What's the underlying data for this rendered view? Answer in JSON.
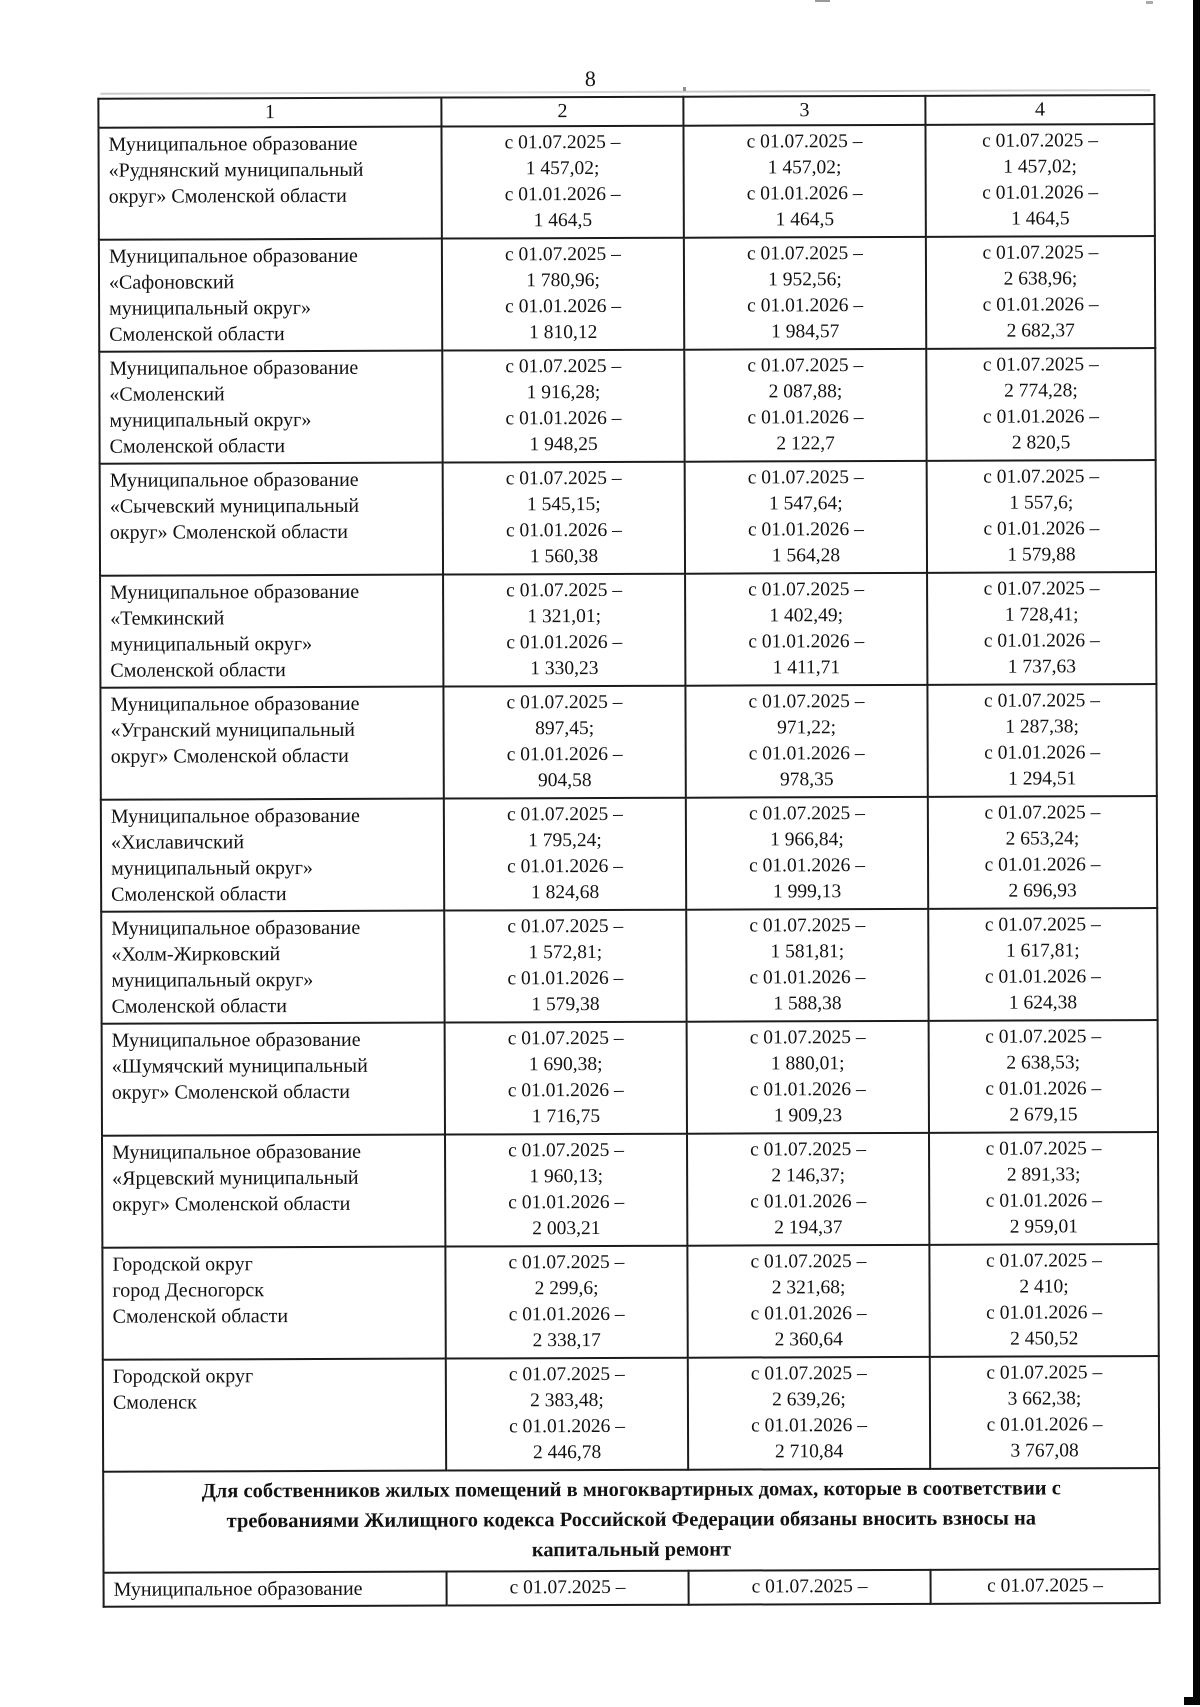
{
  "page": {
    "number": "8"
  },
  "table": {
    "header": [
      "1",
      "2",
      "3",
      "4"
    ],
    "period1_label": "с 01.07.2025 –",
    "period2_label": "с 01.01.2026 –",
    "rows": [
      {
        "name_lines": [
          "Муниципальное образование",
          "«Руднянский муниципальный",
          "округ» Смоленской области"
        ],
        "cells": [
          [
            "1 457,02;",
            "1 464,5"
          ],
          [
            "1 457,02;",
            "1 464,5"
          ],
          [
            "1 457,02;",
            "1 464,5"
          ]
        ]
      },
      {
        "name_lines": [
          "Муниципальное образование",
          "«Сафоновский",
          "муниципальный округ»",
          "Смоленской области"
        ],
        "cells": [
          [
            "1 780,96;",
            "1 810,12"
          ],
          [
            "1 952,56;",
            "1 984,57"
          ],
          [
            "2 638,96;",
            "2 682,37"
          ]
        ]
      },
      {
        "name_lines": [
          "Муниципальное образование",
          "«Смоленский",
          "муниципальный округ»",
          "Смоленской области"
        ],
        "cells": [
          [
            "1 916,28;",
            "1 948,25"
          ],
          [
            "2 087,88;",
            "2 122,7"
          ],
          [
            "2 774,28;",
            "2 820,5"
          ]
        ]
      },
      {
        "name_lines": [
          "Муниципальное образование",
          "«Сычевский муниципальный",
          "округ» Смоленской области"
        ],
        "cells": [
          [
            "1 545,15;",
            "1 560,38"
          ],
          [
            "1 547,64;",
            "1 564,28"
          ],
          [
            "1 557,6;",
            "1 579,88"
          ]
        ]
      },
      {
        "name_lines": [
          "Муниципальное образование",
          "«Темкинский",
          "муниципальный округ»",
          "Смоленской области"
        ],
        "cells": [
          [
            "1 321,01;",
            "1 330,23"
          ],
          [
            "1 402,49;",
            "1 411,71"
          ],
          [
            "1 728,41;",
            "1 737,63"
          ]
        ]
      },
      {
        "name_lines": [
          "Муниципальное образование",
          "«Угранский муниципальный",
          "округ» Смоленской области"
        ],
        "cells": [
          [
            "897,45;",
            "904,58"
          ],
          [
            "971,22;",
            "978,35"
          ],
          [
            "1 287,38;",
            "1 294,51"
          ]
        ]
      },
      {
        "name_lines": [
          "Муниципальное образование",
          "«Хиславичский",
          "муниципальный округ»",
          "Смоленской области"
        ],
        "cells": [
          [
            "1 795,24;",
            "1 824,68"
          ],
          [
            "1 966,84;",
            "1 999,13"
          ],
          [
            "2 653,24;",
            "2 696,93"
          ]
        ]
      },
      {
        "name_lines": [
          "Муниципальное образование",
          "«Холм-Жирковский",
          "муниципальный округ»",
          "Смоленской области"
        ],
        "cells": [
          [
            "1 572,81;",
            "1 579,38"
          ],
          [
            "1 581,81;",
            "1 588,38"
          ],
          [
            "1 617,81;",
            "1 624,38"
          ]
        ]
      },
      {
        "name_lines": [
          "Муниципальное образование",
          "«Шумячский муниципальный",
          "округ» Смоленской области"
        ],
        "cells": [
          [
            "1 690,38;",
            "1 716,75"
          ],
          [
            "1 880,01;",
            "1 909,23"
          ],
          [
            "2 638,53;",
            "2 679,15"
          ]
        ]
      },
      {
        "name_lines": [
          "Муниципальное образование",
          "«Ярцевский муниципальный",
          "округ» Смоленской области"
        ],
        "cells": [
          [
            "1 960,13;",
            "2 003,21"
          ],
          [
            "2 146,37;",
            "2 194,37"
          ],
          [
            "2 891,33;",
            "2 959,01"
          ]
        ]
      },
      {
        "name_lines": [
          "Городской округ",
          "город Десногорск",
          "Смоленской области"
        ],
        "cells": [
          [
            "2 299,6;",
            "2 338,17"
          ],
          [
            "2 321,68;",
            "2 360,64"
          ],
          [
            "2 410;",
            "2 450,52"
          ]
        ]
      },
      {
        "name_lines": [
          "Городской округ",
          "Смоленск"
        ],
        "cells": [
          [
            "2 383,48;",
            "2 446,78"
          ],
          [
            "2 639,26;",
            "2 710,84"
          ],
          [
            "3 662,38;",
            "3 767,08"
          ]
        ]
      }
    ],
    "section_note_lines": [
      "Для собственников жилых помещений в многоквартирных домах, которые в соответствии с",
      "требованиями Жилищного кодекса Российской Федерации обязаны вносить взносы на",
      "капитальный ремонт"
    ],
    "partial_row": {
      "name": "Муниципальное образование"
    }
  }
}
